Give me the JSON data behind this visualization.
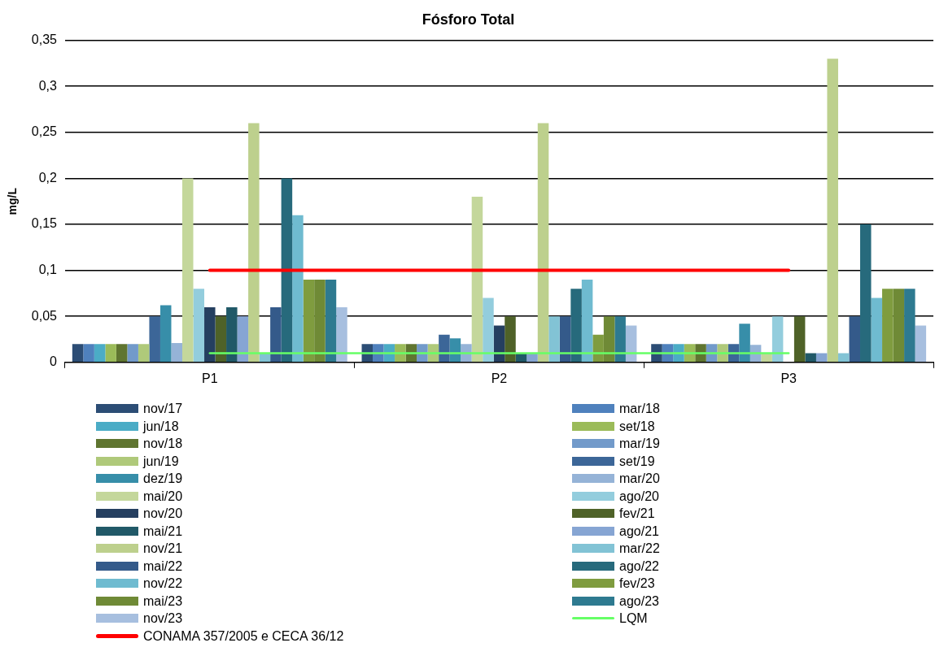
{
  "chart_data": {
    "type": "bar",
    "title": "Fósforo Total",
    "ylabel": "mg/L",
    "categories": [
      "P1",
      "P2",
      "P3"
    ],
    "ylim": [
      0,
      0.35
    ],
    "yticks": [
      0,
      {
        "value": 0.05,
        "label": "0,05"
      },
      {
        "value": 0.1,
        "label": "0,1"
      },
      {
        "value": 0.15,
        "label": "0,15"
      },
      {
        "value": 0.2,
        "label": "0,2"
      },
      {
        "value": 0.25,
        "label": "0,25"
      },
      {
        "value": 0.3,
        "label": "0,3"
      },
      {
        "value": 0.35,
        "label": "0,35"
      }
    ],
    "grid": "y",
    "legend": "bottom",
    "marker": "none",
    "series": [
      {
        "name": "nov/17",
        "color": "#2c4d75",
        "values": [
          0.02,
          0.02,
          0.02
        ]
      },
      {
        "name": "mar/18",
        "color": "#4f81bd",
        "values": [
          0.02,
          0.02,
          0.02
        ]
      },
      {
        "name": "jun/18",
        "color": "#4bacc6",
        "values": [
          0.02,
          0.02,
          0.02
        ]
      },
      {
        "name": "set/18",
        "color": "#9bbb59",
        "values": [
          0.02,
          0.02,
          0.02
        ]
      },
      {
        "name": "nov/18",
        "color": "#5f7530",
        "values": [
          0.02,
          0.02,
          0.02
        ]
      },
      {
        "name": "mar/19",
        "color": "#729aca",
        "values": [
          0.02,
          0.02,
          0.02
        ]
      },
      {
        "name": "jun/19",
        "color": "#afc97a",
        "values": [
          0.02,
          0.02,
          0.02
        ]
      },
      {
        "name": "set/19",
        "color": "#3c6698",
        "values": [
          0.05,
          0.03,
          0.02
        ]
      },
      {
        "name": "dez/19",
        "color": "#378ea9",
        "values": [
          0.062,
          0.026,
          0.042
        ]
      },
      {
        "name": "mar/20",
        "color": "#95b3d7",
        "values": [
          0.021,
          0.02,
          0.019
        ]
      },
      {
        "name": "mai/20",
        "color": "#c4d79b",
        "values": [
          0.2,
          0.18,
          0.01
        ]
      },
      {
        "name": "ago/20",
        "color": "#93cddd",
        "values": [
          0.08,
          0.07,
          0.05
        ]
      },
      {
        "name": "nov/20",
        "color": "#253f60",
        "values": [
          0.06,
          0.04,
          null
        ]
      },
      {
        "name": "fev/21",
        "color": "#4f6228",
        "values": [
          0.05,
          0.05,
          0.05
        ]
      },
      {
        "name": "mai/21",
        "color": "#215968",
        "values": [
          0.06,
          0.01,
          0.01
        ]
      },
      {
        "name": "ago/21",
        "color": "#86a5d3",
        "values": [
          0.05,
          0.01,
          0.01
        ]
      },
      {
        "name": "nov/21",
        "color": "#bdd08d",
        "values": [
          0.26,
          0.26,
          0.33
        ]
      },
      {
        "name": "mar/22",
        "color": "#82c3d5",
        "values": [
          0.01,
          0.05,
          0.01
        ]
      },
      {
        "name": "mai/22",
        "color": "#345a8a",
        "values": [
          0.06,
          0.05,
          0.05
        ]
      },
      {
        "name": "ago/22",
        "color": "#276a7c",
        "values": [
          0.2,
          0.08,
          0.15
        ]
      },
      {
        "name": "nov/22",
        "color": "#6fbbd0",
        "values": [
          0.16,
          0.09,
          0.07
        ]
      },
      {
        "name": "fev/23",
        "color": "#7f9c3f",
        "values": [
          0.09,
          0.03,
          0.08
        ]
      },
      {
        "name": "mai/23",
        "color": "#6f8a36",
        "values": [
          0.09,
          0.05,
          0.08
        ]
      },
      {
        "name": "ago/23",
        "color": "#2e7a90",
        "values": [
          0.09,
          0.05,
          0.08
        ]
      },
      {
        "name": "nov/23",
        "color": "#a7bfdf",
        "values": [
          0.06,
          0.04,
          0.04
        ]
      },
      {
        "name": "LQM",
        "type": "line",
        "color": "#66ff66",
        "values": [
          0.01,
          0.01,
          0.01
        ]
      },
      {
        "name": "CONAMA 357/2005 e CECA 36/12",
        "type": "line",
        "color": "#ff0000",
        "values": [
          0.1,
          0.1,
          0.1
        ]
      }
    ]
  }
}
